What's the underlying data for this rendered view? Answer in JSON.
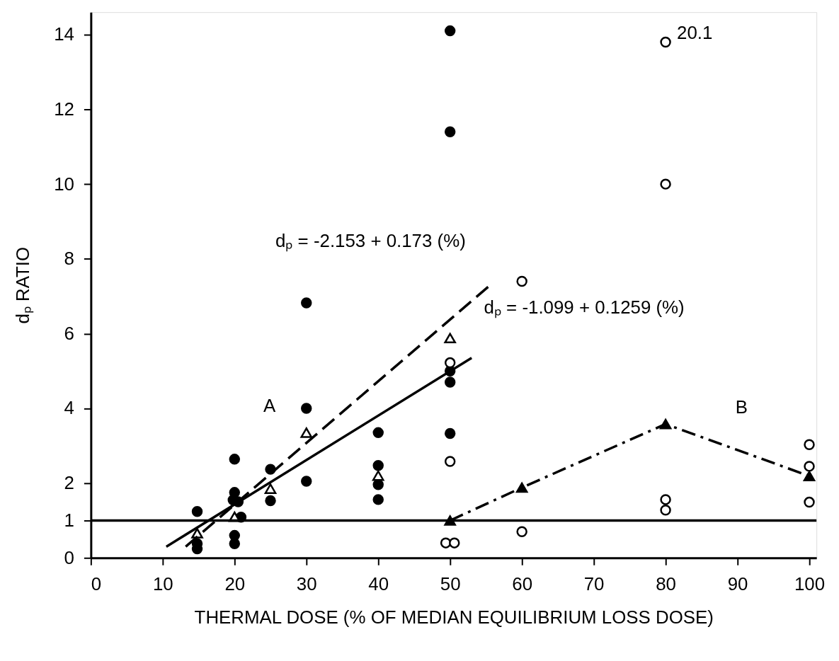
{
  "chart_data": {
    "type": "scatter",
    "xlabel": "THERMAL DOSE (% OF MEDIAN EQUILIBRIUM LOSS DOSE)",
    "ylabel": "dₚ RATIO",
    "xlim": [
      0,
      101
    ],
    "ylim": [
      0,
      14.6
    ],
    "xticks": [
      0,
      10,
      20,
      30,
      40,
      50,
      60,
      70,
      80,
      90,
      100
    ],
    "yticks": [
      0,
      1,
      2,
      4,
      6,
      8,
      10,
      12,
      14
    ],
    "grid": false,
    "series": [
      {
        "marker": "circle",
        "color": "#000000",
        "x": [
          14.8,
          14.8,
          14.8,
          20,
          19.8,
          20.5,
          20.9,
          20,
          20,
          20,
          25,
          25,
          30,
          30,
          30,
          40,
          40,
          40,
          40,
          50,
          50,
          50,
          50,
          50
        ],
        "values": [
          1.24,
          0.38,
          0.24,
          1.75,
          1.55,
          1.5,
          1.09,
          0.6,
          0.38,
          2.64,
          2.37,
          1.53,
          4.0,
          6.82,
          2.05,
          3.35,
          2.47,
          1.96,
          1.56,
          14.1,
          11.4,
          5.0,
          4.7,
          3.33
        ]
      },
      {
        "marker": "circle",
        "color": "#ffffff",
        "x": [
          50,
          50,
          49.4,
          50.6,
          60,
          60,
          80,
          80,
          80,
          80,
          100,
          100,
          100
        ],
        "values": [
          5.22,
          2.58,
          0.4,
          0.4,
          7.4,
          0.7,
          13.8,
          10.0,
          1.56,
          1.28,
          3.03,
          2.45,
          1.49
        ]
      },
      {
        "marker": "triangle",
        "color": "#ffffff",
        "x": [
          14.8,
          20,
          25,
          30,
          40,
          50
        ],
        "values": [
          0.66,
          1.1,
          1.85,
          3.35,
          2.2,
          5.88
        ]
      },
      {
        "type": "line",
        "marker": "none",
        "line_style": "solid",
        "color": "#000000",
        "x": [
          10.5,
          53
        ],
        "values": [
          0.3,
          5.35
        ]
      },
      {
        "type": "line",
        "marker": "none",
        "line_style": "dashed",
        "color": "#000000",
        "x": [
          13.2,
          55.6
        ],
        "values": [
          0.3,
          7.3
        ]
      },
      {
        "type": "line",
        "marker": "triangle",
        "line_style": "dashdot",
        "color": "#000000",
        "x": [
          50,
          60,
          80,
          100
        ],
        "values": [
          1.0,
          1.88,
          3.58,
          2.19
        ]
      }
    ],
    "ref_lines": [
      {
        "axis": "y",
        "value": 1,
        "color": "#000000",
        "line_style": "solid"
      }
    ],
    "annotations": [
      "A",
      "B",
      "dₚ = -2.153 + 0.173 (%)",
      "dₚ = -1.099 + 0.1259 (%)",
      {
        "text": "20.1",
        "x": 80,
        "y": 13.8
      }
    ]
  }
}
